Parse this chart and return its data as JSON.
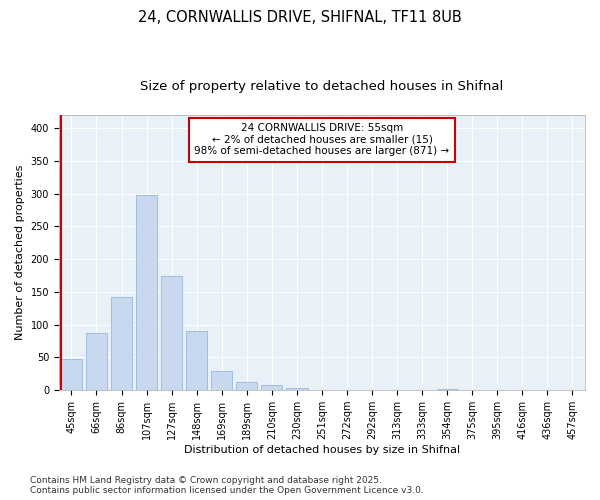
{
  "title_line1": "24, CORNWALLIS DRIVE, SHIFNAL, TF11 8UB",
  "title_line2": "Size of property relative to detached houses in Shifnal",
  "xlabel": "Distribution of detached houses by size in Shifnal",
  "ylabel": "Number of detached properties",
  "bar_color": "#c8d8ee",
  "bar_edge_color": "#8ab0d8",
  "background_color": "#f0f4fa",
  "plot_bg_color": "#e8f0f8",
  "annotation_box_color": "#ffffff",
  "annotation_border_color": "#cc0000",
  "annotation_text_line1": "24 CORNWALLIS DRIVE: 55sqm",
  "annotation_text_line2": "← 2% of detached houses are smaller (15)",
  "annotation_text_line3": "98% of semi-detached houses are larger (871) →",
  "annotation_fontsize": 7.5,
  "footer_text": "Contains HM Land Registry data © Crown copyright and database right 2025.\nContains public sector information licensed under the Open Government Licence v3.0.",
  "categories": [
    "45sqm",
    "66sqm",
    "86sqm",
    "107sqm",
    "127sqm",
    "148sqm",
    "169sqm",
    "189sqm",
    "210sqm",
    "230sqm",
    "251sqm",
    "272sqm",
    "292sqm",
    "313sqm",
    "333sqm",
    "354sqm",
    "375sqm",
    "395sqm",
    "416sqm",
    "436sqm",
    "457sqm"
  ],
  "values": [
    47,
    88,
    143,
    298,
    174,
    91,
    30,
    13,
    8,
    4,
    1,
    0,
    0,
    0,
    0,
    2,
    0,
    0,
    0,
    0,
    1
  ],
  "ylim": [
    0,
    420
  ],
  "yticks": [
    0,
    50,
    100,
    150,
    200,
    250,
    300,
    350,
    400
  ],
  "property_bar_color": "#cc0000",
  "title_fontsize": 10.5,
  "subtitle_fontsize": 9.5,
  "axis_label_fontsize": 8,
  "tick_fontsize": 7,
  "footer_fontsize": 6.5
}
